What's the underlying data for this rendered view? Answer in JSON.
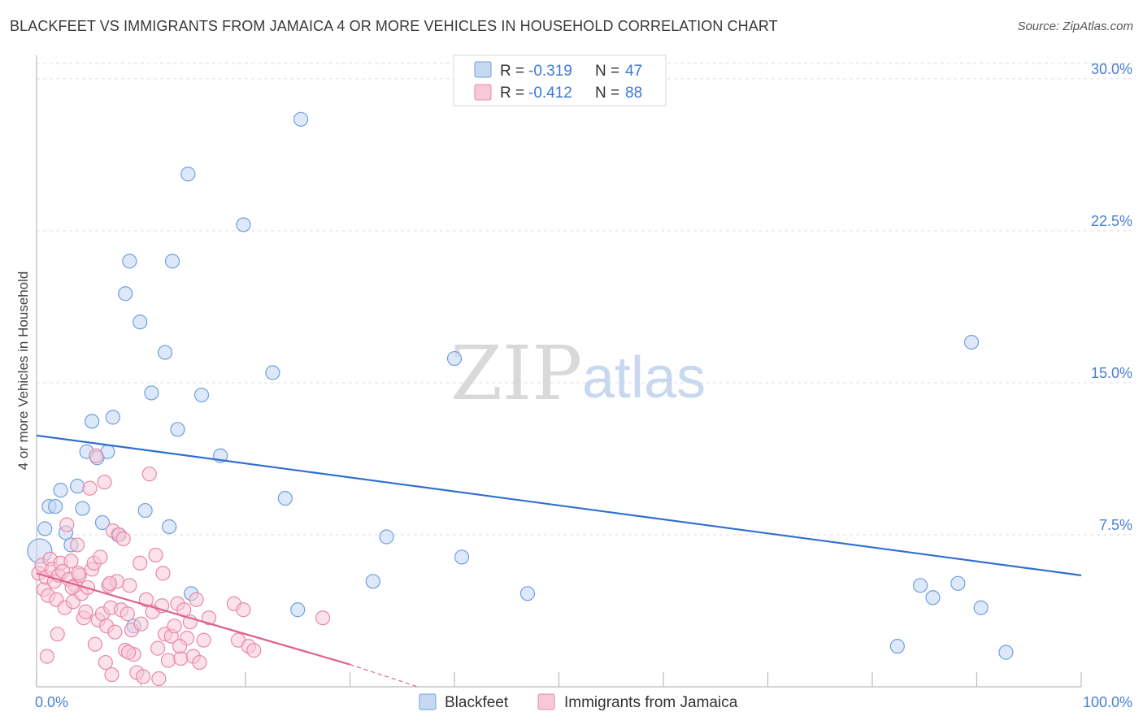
{
  "title": "BLACKFEET VS IMMIGRANTS FROM JAMAICA 4 OR MORE VEHICLES IN HOUSEHOLD CORRELATION CHART",
  "source": "Source: ZipAtlas.com",
  "watermark": {
    "zip": "ZIP",
    "atlas": "atlas"
  },
  "colors": {
    "blue": "#6fa0e0",
    "blue_fill": "#c6d9f3",
    "blue_line": "#2f6fd0",
    "pink": "#e888aa",
    "pink_fill": "#f7c9d8",
    "pink_line": "#e0608e",
    "grid": "#dddddd",
    "axis_text": "#4a7fd0"
  },
  "legend": {
    "r_label": "R =",
    "n_label": "N =",
    "items": [
      {
        "r": "-0.319",
        "n": "47"
      },
      {
        "r": "-0.412",
        "n": "88"
      }
    ]
  },
  "bottom_legend": [
    "Blackfeet",
    "Immigrants from Jamaica"
  ],
  "chart_data": {
    "type": "scatter",
    "ylabel": "4 or more Vehicles in Household",
    "xlabel": "",
    "xlim": [
      0,
      100
    ],
    "ylim": [
      0,
      31
    ],
    "x_tick_labels": [
      "0.0%",
      "100.0%"
    ],
    "y_tick_labels": [
      "7.5%",
      "15.0%",
      "22.5%",
      "30.0%"
    ],
    "y_ticks": [
      7.5,
      15.0,
      22.5,
      30.0
    ],
    "series": [
      {
        "name": "Blackfeet",
        "r": -0.319,
        "n": 47,
        "trend": {
          "x0": 0,
          "y0": 12.4,
          "x1": 100,
          "y1": 5.5
        },
        "points": [
          [
            0.3,
            6.7
          ],
          [
            0.8,
            7.8
          ],
          [
            1.2,
            8.9
          ],
          [
            1.8,
            8.9
          ],
          [
            2.3,
            9.7
          ],
          [
            2.8,
            7.6
          ],
          [
            3.3,
            7.0
          ],
          [
            3.9,
            9.9
          ],
          [
            4.4,
            8.8
          ],
          [
            4.8,
            11.6
          ],
          [
            5.3,
            13.1
          ],
          [
            5.8,
            11.3
          ],
          [
            6.3,
            8.1
          ],
          [
            6.8,
            11.6
          ],
          [
            7.3,
            13.3
          ],
          [
            7.8,
            7.5
          ],
          [
            8.5,
            19.4
          ],
          [
            8.9,
            21.0
          ],
          [
            9.3,
            3.0
          ],
          [
            9.9,
            18.0
          ],
          [
            10.4,
            8.7
          ],
          [
            11.0,
            14.5
          ],
          [
            12.3,
            16.5
          ],
          [
            12.7,
            7.9
          ],
          [
            13.0,
            21.0
          ],
          [
            13.5,
            12.7
          ],
          [
            14.5,
            25.3
          ],
          [
            14.8,
            4.6
          ],
          [
            15.8,
            14.4
          ],
          [
            17.6,
            11.4
          ],
          [
            19.8,
            22.8
          ],
          [
            22.6,
            15.5
          ],
          [
            23.8,
            9.3
          ],
          [
            25.0,
            3.8
          ],
          [
            25.3,
            28.0
          ],
          [
            32.2,
            5.2
          ],
          [
            33.5,
            7.4
          ],
          [
            40.0,
            16.2
          ],
          [
            40.7,
            6.4
          ],
          [
            47.0,
            4.6
          ],
          [
            84.6,
            5.0
          ],
          [
            85.8,
            4.4
          ],
          [
            88.2,
            5.1
          ],
          [
            89.5,
            17.0
          ],
          [
            90.4,
            3.9
          ],
          [
            82.4,
            2.0
          ],
          [
            92.8,
            1.7
          ]
        ]
      },
      {
        "name": "Immigrants from Jamaica",
        "r": -0.412,
        "n": 88,
        "trend": {
          "x0": 0,
          "y0": 5.6,
          "x1": 30,
          "y1": 1.1
        },
        "trend_dashed": {
          "x0": 30,
          "y0": 1.1,
          "x1": 36.5,
          "y1": 0.0
        },
        "points": [
          [
            0.2,
            5.6
          ],
          [
            0.5,
            6.0
          ],
          [
            0.7,
            4.8
          ],
          [
            0.9,
            5.4
          ],
          [
            1.1,
            4.5
          ],
          [
            1.3,
            6.3
          ],
          [
            1.5,
            5.8
          ],
          [
            1.7,
            5.2
          ],
          [
            1.9,
            4.3
          ],
          [
            2.1,
            5.5
          ],
          [
            2.3,
            6.1
          ],
          [
            2.5,
            5.7
          ],
          [
            2.7,
            3.9
          ],
          [
            2.9,
            8.0
          ],
          [
            3.1,
            5.3
          ],
          [
            3.3,
            6.2
          ],
          [
            3.5,
            4.2
          ],
          [
            3.7,
            5.0
          ],
          [
            3.9,
            7.0
          ],
          [
            4.1,
            5.5
          ],
          [
            4.3,
            4.6
          ],
          [
            4.5,
            3.4
          ],
          [
            4.7,
            3.7
          ],
          [
            4.9,
            4.9
          ],
          [
            5.1,
            9.8
          ],
          [
            5.3,
            5.8
          ],
          [
            5.5,
            6.1
          ],
          [
            5.7,
            11.4
          ],
          [
            5.9,
            3.3
          ],
          [
            6.1,
            6.4
          ],
          [
            6.3,
            3.6
          ],
          [
            6.5,
            10.1
          ],
          [
            6.7,
            3.0
          ],
          [
            6.9,
            5.0
          ],
          [
            7.1,
            3.9
          ],
          [
            7.3,
            7.7
          ],
          [
            7.5,
            2.7
          ],
          [
            7.7,
            5.2
          ],
          [
            7.9,
            7.5
          ],
          [
            8.1,
            3.8
          ],
          [
            8.3,
            7.3
          ],
          [
            8.5,
            1.8
          ],
          [
            8.7,
            3.6
          ],
          [
            8.9,
            5.0
          ],
          [
            9.1,
            2.8
          ],
          [
            9.3,
            1.6
          ],
          [
            9.6,
            0.7
          ],
          [
            9.9,
            6.1
          ],
          [
            10.2,
            0.5
          ],
          [
            10.5,
            4.3
          ],
          [
            10.8,
            10.5
          ],
          [
            11.1,
            3.7
          ],
          [
            11.4,
            6.5
          ],
          [
            11.7,
            0.4
          ],
          [
            12.0,
            4.0
          ],
          [
            12.3,
            2.6
          ],
          [
            12.6,
            1.3
          ],
          [
            12.9,
            2.5
          ],
          [
            13.2,
            3.0
          ],
          [
            13.5,
            4.1
          ],
          [
            13.8,
            1.4
          ],
          [
            14.1,
            3.8
          ],
          [
            14.4,
            2.4
          ],
          [
            14.7,
            3.2
          ],
          [
            15.0,
            1.5
          ],
          [
            15.3,
            4.3
          ],
          [
            15.6,
            1.2
          ],
          [
            16.0,
            2.3
          ],
          [
            16.5,
            3.4
          ],
          [
            18.9,
            4.1
          ],
          [
            19.3,
            2.3
          ],
          [
            19.8,
            3.8
          ],
          [
            20.3,
            2.0
          ],
          [
            20.8,
            1.8
          ],
          [
            1.0,
            1.5
          ],
          [
            2.0,
            2.6
          ],
          [
            5.6,
            2.1
          ],
          [
            6.6,
            1.2
          ],
          [
            7.2,
            0.6
          ],
          [
            8.8,
            1.7
          ],
          [
            10.0,
            3.1
          ],
          [
            11.6,
            1.9
          ],
          [
            12.1,
            5.6
          ],
          [
            13.7,
            2.0
          ],
          [
            27.4,
            3.4
          ],
          [
            3.4,
            4.9
          ],
          [
            4.0,
            5.6
          ],
          [
            7.0,
            5.1
          ]
        ]
      }
    ]
  }
}
